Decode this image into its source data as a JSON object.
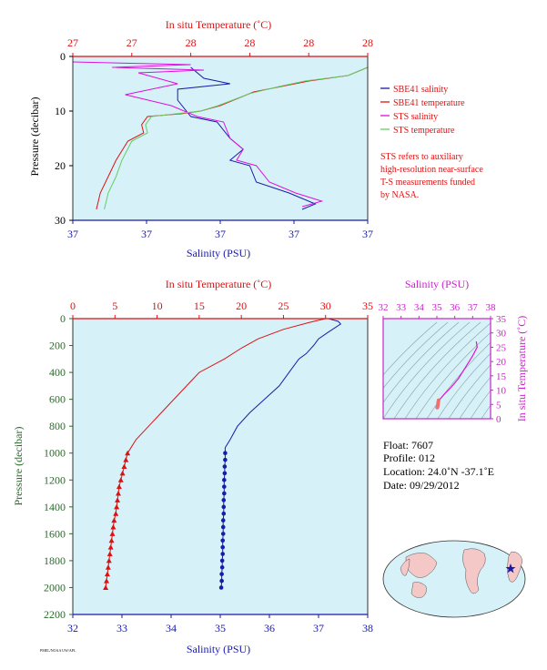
{
  "colors": {
    "panel_bg": "#d6f2f8",
    "sbe_salinity": "#1a1aa8",
    "sbe_temperature": "#dd1111",
    "sts_salinity": "#dd11dd",
    "sts_temperature": "#66cc66",
    "axis_red": "#dd1111",
    "axis_blue": "#1a1aa8",
    "axis_green": "#2a6a2a",
    "axis_magenta": "#cc22cc",
    "land": "#f5c8c8",
    "ocean": "#d6f2f8"
  },
  "top_panel": {
    "top_axis_label": "In situ Temperature (˚C)",
    "top_ticks": [
      "27",
      "27",
      "28",
      "28",
      "28",
      "28"
    ],
    "left_axis_label": "Pressure (decibar)",
    "left_ticks": [
      "0",
      "10",
      "20",
      "30"
    ],
    "bottom_axis_label": "Salinity (PSU)",
    "bottom_ticks": [
      "37",
      "37",
      "37",
      "37",
      "37"
    ],
    "legend": [
      {
        "label": "SBE41 salinity",
        "color": "#1a1aa8"
      },
      {
        "label": "SBE41 temperature",
        "color": "#dd1111"
      },
      {
        "label": "STS salinity",
        "color": "#dd11dd"
      },
      {
        "label": "STS temperature",
        "color": "#66cc66"
      }
    ],
    "note": [
      "STS refers to auxiliary",
      "high-resolution near-surface",
      "T-S measurements funded",
      "by NASA."
    ]
  },
  "main_panel": {
    "top_axis_label": "In situ Temperature (˚C)",
    "top_ticks": [
      "0",
      "5",
      "10",
      "15",
      "20",
      "25",
      "30",
      "35"
    ],
    "left_axis_label": "Pressure (decibar)",
    "left_ticks": [
      "0",
      "200",
      "400",
      "600",
      "800",
      "1000",
      "1200",
      "1400",
      "1600",
      "1800",
      "2000",
      "2200"
    ],
    "bottom_axis_label": "Salinity (PSU)",
    "bottom_ticks": [
      "32",
      "33",
      "34",
      "35",
      "36",
      "37",
      "38"
    ]
  },
  "ts_panel": {
    "top_axis_label": "Salinity (PSU)",
    "top_ticks": [
      "32",
      "33",
      "34",
      "35",
      "36",
      "37",
      "38"
    ],
    "right_axis_label": "In situ Temperature (˚C)",
    "right_ticks": [
      "0",
      "5",
      "10",
      "15",
      "20",
      "25",
      "30",
      "35"
    ]
  },
  "float_info": {
    "float": "Float: 7607",
    "profile": "Profile: 012",
    "location": "Location: 24.0˚N -37.1˚E",
    "date": "Date: 09/29/2012"
  },
  "footer_small": "PMEL/NOAA UW/APL",
  "chart_data": [
    {
      "type": "line",
      "description": "Near-surface zoom (top panel)",
      "x_top_label": "In situ Temperature (˚C)",
      "x_bottom_label": "Salinity (PSU)",
      "ylabel": "Pressure (decibar)",
      "temperature_range": [
        26.8,
        28.3
      ],
      "salinity_range": [
        36.9,
        37.35
      ],
      "ylim": [
        30,
        0
      ],
      "series": [
        {
          "name": "SBE41 salinity",
          "axis": "salinity",
          "points": [
            [
              37.08,
              2
            ],
            [
              37.1,
              4
            ],
            [
              37.14,
              5
            ],
            [
              37.06,
              6
            ],
            [
              37.06,
              8
            ],
            [
              37.08,
              11
            ],
            [
              37.12,
              12
            ],
            [
              37.14,
              15
            ],
            [
              37.16,
              17
            ],
            [
              37.14,
              19
            ],
            [
              37.17,
              20
            ],
            [
              37.18,
              23
            ],
            [
              37.23,
              25
            ],
            [
              37.27,
              27
            ],
            [
              37.25,
              28
            ]
          ]
        },
        {
          "name": "SBE41 temperature",
          "axis": "temperature",
          "points": [
            [
              28.3,
              2
            ],
            [
              28.2,
              3.5
            ],
            [
              28.0,
              4.5
            ],
            [
              27.86,
              5.5
            ],
            [
              27.72,
              6.5
            ],
            [
              27.55,
              9
            ],
            [
              27.45,
              10
            ],
            [
              27.35,
              10.5
            ],
            [
              27.18,
              11
            ],
            [
              27.15,
              12.5
            ],
            [
              27.16,
              14
            ],
            [
              27.08,
              15.5
            ],
            [
              27.02,
              19
            ],
            [
              26.98,
              22
            ],
            [
              26.94,
              25
            ],
            [
              26.92,
              28
            ]
          ]
        },
        {
          "name": "STS salinity",
          "axis": "salinity",
          "points": [
            [
              36.9,
              1
            ],
            [
              37.08,
              1.5
            ],
            [
              36.96,
              2
            ],
            [
              37.1,
              2.5
            ],
            [
              37.0,
              3
            ],
            [
              37.06,
              5
            ],
            [
              36.98,
              7
            ],
            [
              37.05,
              9
            ],
            [
              37.09,
              11
            ],
            [
              37.13,
              12
            ],
            [
              37.14,
              15
            ],
            [
              37.16,
              17
            ],
            [
              37.15,
              19
            ],
            [
              37.18,
              20
            ],
            [
              37.2,
              23
            ],
            [
              37.24,
              25
            ],
            [
              37.28,
              26.5
            ],
            [
              37.25,
              27.5
            ]
          ]
        },
        {
          "name": "STS temperature",
          "axis": "temperature",
          "points": [
            [
              28.3,
              2
            ],
            [
              28.2,
              3.5
            ],
            [
              27.98,
              4.5
            ],
            [
              27.85,
              5.5
            ],
            [
              27.7,
              6.8
            ],
            [
              27.54,
              9
            ],
            [
              27.45,
              10
            ],
            [
              27.2,
              11
            ],
            [
              27.17,
              12.5
            ],
            [
              27.18,
              14
            ],
            [
              27.1,
              15.5
            ],
            [
              27.05,
              19
            ],
            [
              27.02,
              22
            ],
            [
              26.98,
              25
            ],
            [
              26.96,
              28
            ]
          ]
        }
      ]
    },
    {
      "type": "line",
      "description": "Full-depth profile (main panel)",
      "x_top_label": "In situ Temperature (˚C)",
      "x_bottom_label": "Salinity (PSU)",
      "ylabel": "Pressure (decibar)",
      "temperature_range": [
        0,
        35
      ],
      "salinity_range": [
        32,
        38
      ],
      "ylim": [
        2200,
        0
      ],
      "series": [
        {
          "name": "SBE41 temperature",
          "axis": "temperature",
          "points": [
            [
              30,
              0
            ],
            [
              28,
              30
            ],
            [
              25,
              80
            ],
            [
              22,
              150
            ],
            [
              20,
              220
            ],
            [
              18,
              300
            ],
            [
              15,
              400
            ],
            [
              13.5,
              500
            ],
            [
              12,
              600
            ],
            [
              10.5,
              700
            ],
            [
              9,
              800
            ],
            [
              7.5,
              900
            ],
            [
              6.9,
              960
            ],
            [
              6.5,
              1000
            ]
          ],
          "marker_points": [
            [
              6.5,
              1000
            ],
            [
              6.3,
              1050
            ],
            [
              6.1,
              1100
            ],
            [
              5.9,
              1150
            ],
            [
              5.7,
              1200
            ],
            [
              5.5,
              1250
            ],
            [
              5.4,
              1300
            ],
            [
              5.3,
              1350
            ],
            [
              5.2,
              1400
            ],
            [
              5.1,
              1450
            ],
            [
              4.9,
              1500
            ],
            [
              4.8,
              1550
            ],
            [
              4.7,
              1600
            ],
            [
              4.6,
              1650
            ],
            [
              4.5,
              1700
            ],
            [
              4.4,
              1750
            ],
            [
              4.3,
              1800
            ],
            [
              4.2,
              1850
            ],
            [
              4.1,
              1900
            ],
            [
              4.0,
              1950
            ],
            [
              3.9,
              2000
            ]
          ]
        },
        {
          "name": "SBE41 salinity",
          "axis": "salinity",
          "points": [
            [
              37.2,
              0
            ],
            [
              37.4,
              20
            ],
            [
              37.45,
              40
            ],
            [
              37.2,
              100
            ],
            [
              37.0,
              150
            ],
            [
              36.9,
              200
            ],
            [
              36.75,
              260
            ],
            [
              36.6,
              300
            ],
            [
              36.4,
              400
            ],
            [
              36.2,
              500
            ],
            [
              35.9,
              600
            ],
            [
              35.6,
              700
            ],
            [
              35.35,
              800
            ],
            [
              35.2,
              900
            ],
            [
              35.1,
              960
            ],
            [
              35.1,
              1000
            ]
          ],
          "marker_points": [
            [
              35.1,
              1000
            ],
            [
              35.1,
              1050
            ],
            [
              35.09,
              1100
            ],
            [
              35.09,
              1150
            ],
            [
              35.08,
              1200
            ],
            [
              35.08,
              1250
            ],
            [
              35.08,
              1300
            ],
            [
              35.07,
              1350
            ],
            [
              35.07,
              1400
            ],
            [
              35.07,
              1450
            ],
            [
              35.06,
              1500
            ],
            [
              35.06,
              1550
            ],
            [
              35.06,
              1600
            ],
            [
              35.05,
              1650
            ],
            [
              35.05,
              1700
            ],
            [
              35.05,
              1750
            ],
            [
              35.04,
              1800
            ],
            [
              35.04,
              1850
            ],
            [
              35.03,
              1900
            ],
            [
              35.03,
              1950
            ],
            [
              35.02,
              2000
            ]
          ]
        }
      ]
    },
    {
      "type": "scatter",
      "description": "T-S diagram",
      "xlabel": "Salinity (PSU)",
      "ylabel": "In situ Temperature (˚C)",
      "xlim": [
        32,
        38
      ],
      "ylim": [
        0,
        35
      ],
      "series": [
        {
          "name": "T-S profile",
          "axis": "ts",
          "points": [
            [
              37.2,
              27
            ],
            [
              37.25,
              25
            ],
            [
              37.0,
              22
            ],
            [
              36.6,
              18
            ],
            [
              36.2,
              14
            ],
            [
              35.8,
              11
            ],
            [
              35.4,
              8.5
            ],
            [
              35.2,
              7
            ],
            [
              35.1,
              6.5
            ]
          ]
        },
        {
          "name": "T-S deep",
          "axis": "ts",
          "points": [
            [
              35.1,
              6.5
            ],
            [
              35.08,
              6
            ],
            [
              35.07,
              5.5
            ],
            [
              35.06,
              5
            ],
            [
              35.05,
              4.5
            ],
            [
              35.04,
              4.2
            ],
            [
              35.02,
              3.9
            ]
          ]
        }
      ]
    }
  ]
}
